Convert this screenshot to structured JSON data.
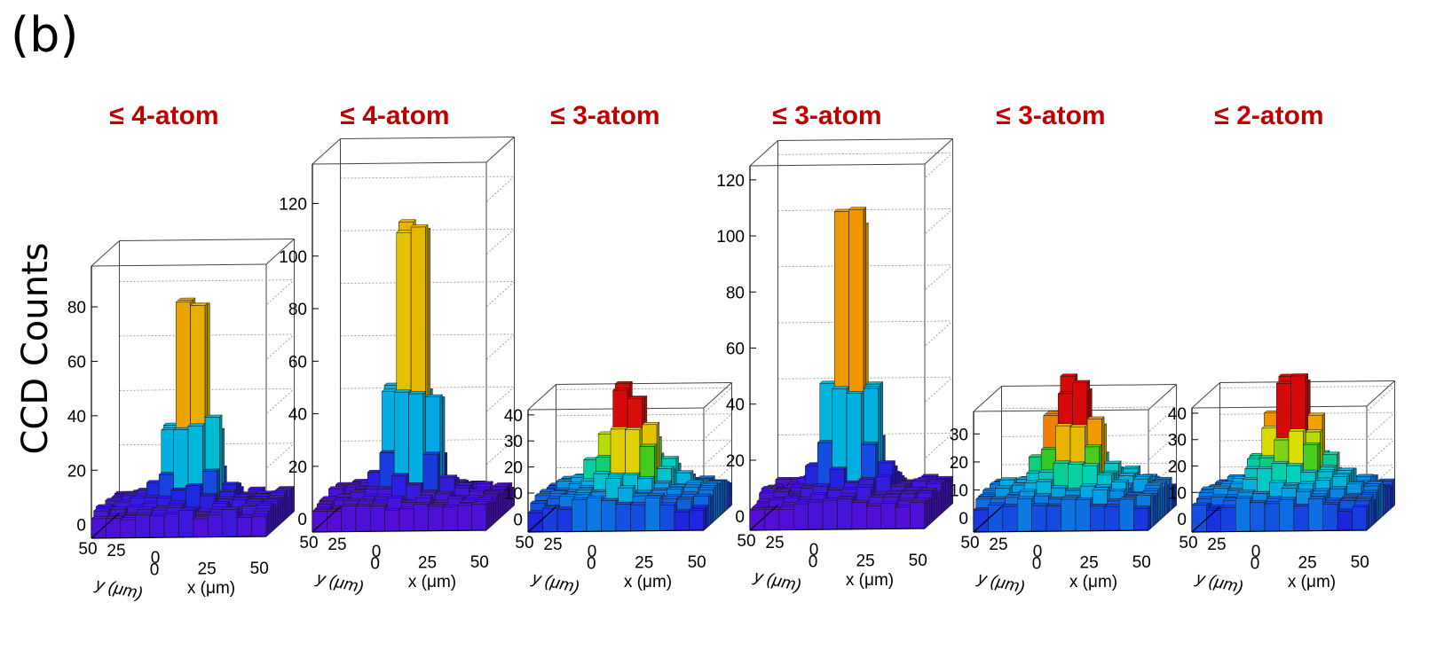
{
  "figure": {
    "panel_label": "(b)",
    "y_label": "CCD Counts"
  },
  "colors": {
    "title": "#c00000",
    "axis": "#000000"
  },
  "chart_data": [
    {
      "type": "lego3d",
      "title": "≤ 4-atom",
      "xlabel": "x (μm)",
      "ylabel": "y (μm)",
      "x_ticks": [
        "0",
        "25",
        "50"
      ],
      "y_ticks": [
        "50",
        "25",
        "0"
      ],
      "z_ticks": [
        0,
        20,
        40,
        60,
        80
      ],
      "zlim": [
        -5,
        95
      ],
      "peak": 90,
      "baseline": 3,
      "sigma": 1.0,
      "bump_amp": 4,
      "bump_sigma": 3.0
    },
    {
      "type": "lego3d",
      "title": "≤ 4-atom",
      "xlabel": "x (μm)",
      "ylabel": "y (μm)",
      "x_ticks": [
        "0",
        "25",
        "50"
      ],
      "y_ticks": [
        "50",
        "25",
        "0"
      ],
      "z_ticks": [
        0,
        20,
        40,
        60,
        80,
        100,
        120
      ],
      "zlim": [
        -5,
        135
      ],
      "peak": 123,
      "baseline": 3,
      "sigma": 1.0,
      "bump_amp": 6,
      "bump_sigma": 3.0
    },
    {
      "type": "lego3d",
      "title": "≤ 3-atom",
      "xlabel": "x (μm)",
      "ylabel": "y (μm)",
      "x_ticks": [
        "0",
        "25",
        "50"
      ],
      "y_ticks": [
        "50",
        "25",
        "0"
      ],
      "z_ticks": [
        0,
        10,
        20,
        30,
        40
      ],
      "zlim": [
        -5,
        42
      ],
      "peak": 35,
      "baseline": 3,
      "sigma": 1.3,
      "bump_amp": 10,
      "bump_sigma": 3.5
    },
    {
      "type": "lego3d",
      "title": "≤ 3-atom",
      "xlabel": "x (μm)",
      "ylabel": "y (μm)",
      "x_ticks": [
        "0",
        "25",
        "50"
      ],
      "y_ticks": [
        "50",
        "25",
        "0"
      ],
      "z_ticks": [
        0,
        20,
        40,
        60,
        80,
        100,
        120
      ],
      "zlim": [
        -5,
        125
      ],
      "peak": 117,
      "baseline": 3,
      "sigma": 1.0,
      "bump_amp": 7,
      "bump_sigma": 3.0
    },
    {
      "type": "lego3d",
      "title": "≤ 3-atom",
      "xlabel": "x (μm)",
      "ylabel": "y (μm)",
      "x_ticks": [
        "0",
        "25",
        "50"
      ],
      "y_ticks": [
        "50",
        "25",
        "0"
      ],
      "z_ticks": [
        0,
        10,
        20,
        30
      ],
      "zlim": [
        -5,
        38
      ],
      "peak": 33,
      "baseline": 3,
      "sigma": 1.3,
      "bump_amp": 10,
      "bump_sigma": 3.5
    },
    {
      "type": "lego3d",
      "title": "≤ 2-atom",
      "xlabel": "x (μm)",
      "ylabel": "y (μm)",
      "x_ticks": [
        "0",
        "25",
        "50"
      ],
      "y_ticks": [
        "50",
        "25",
        "0"
      ],
      "z_ticks": [
        0,
        10,
        20,
        30,
        40
      ],
      "zlim": [
        -5,
        42
      ],
      "peak": 38,
      "baseline": 3,
      "sigma": 1.3,
      "bump_amp": 11,
      "bump_sigma": 3.5
    }
  ]
}
